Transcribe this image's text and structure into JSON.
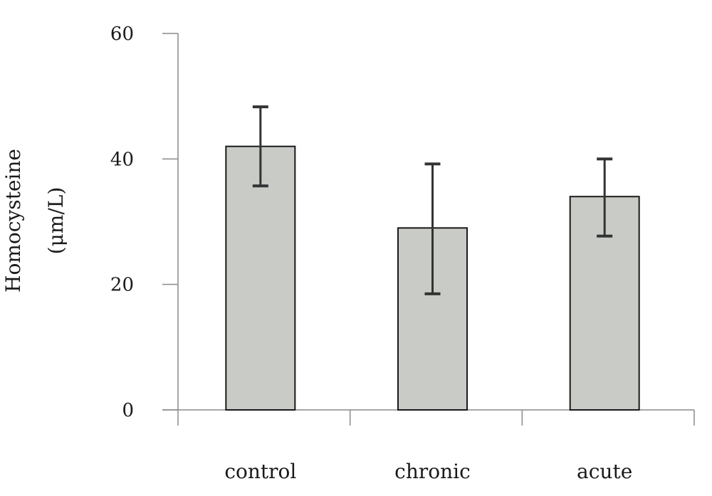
{
  "chart_data": {
    "type": "bar",
    "categories": [
      "control",
      "chronic",
      "acute"
    ],
    "values": [
      42,
      29,
      34
    ],
    "error_low": [
      35.7,
      18.5,
      27.7
    ],
    "error_high": [
      48.3,
      39.2,
      40
    ],
    "ylabel_lines": [
      "Homocysteine",
      "(μm/L)"
    ],
    "xlabel": "",
    "ylim": [
      0,
      60
    ],
    "yticks": [
      0,
      20,
      40,
      60
    ],
    "ytick_labels": [
      "0",
      "20",
      "40",
      "60"
    ],
    "grid": false,
    "colors": {
      "bar_fill": "#c8cbc6",
      "bar_stroke": "#1a1a1a",
      "axis": "#8a8a8a",
      "error_bar": "#333333"
    }
  }
}
